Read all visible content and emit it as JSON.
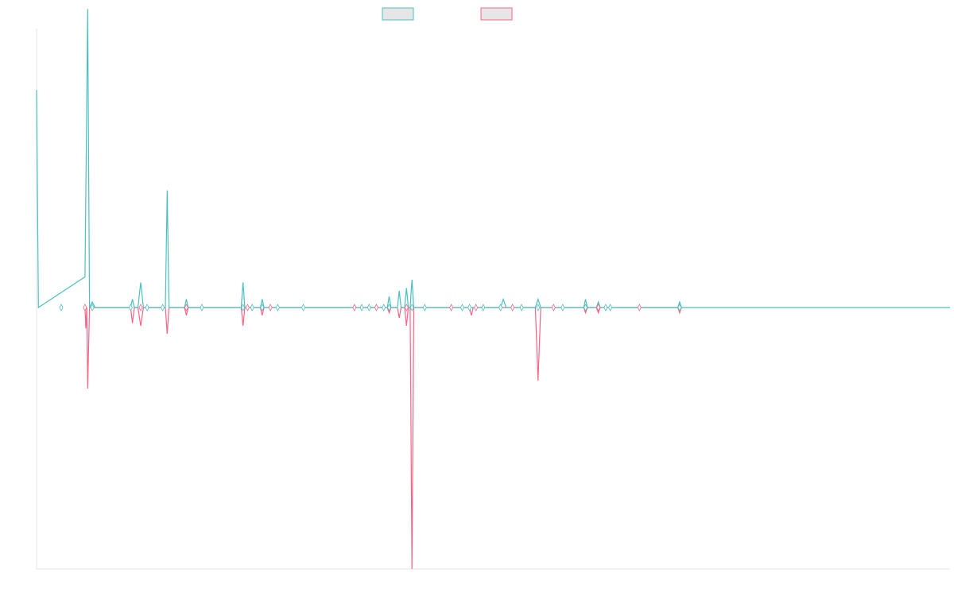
{
  "chart_data": {
    "type": "line",
    "title": "",
    "xlabel": "",
    "ylabel": "",
    "xlim": [
      0,
      100
    ],
    "ylim": [
      -100,
      100
    ],
    "grid": false,
    "legend": {
      "placement": "top-center"
    },
    "series": [
      {
        "color": "#4bc0c0",
        "fill": "#e6e6e6",
        "points": [
          [
            0,
            78
          ],
          [
            0.2,
            0
          ],
          [
            5.3,
            11
          ],
          [
            5.6,
            107
          ],
          [
            5.8,
            0
          ],
          [
            6.1,
            2
          ],
          [
            6.4,
            0
          ],
          [
            10.3,
            0
          ],
          [
            10.5,
            3
          ],
          [
            10.7,
            0
          ],
          [
            11.1,
            0
          ],
          [
            11.4,
            9
          ],
          [
            11.7,
            0
          ],
          [
            14.1,
            0
          ],
          [
            14.3,
            42
          ],
          [
            14.5,
            0
          ],
          [
            16.2,
            0
          ],
          [
            16.4,
            3
          ],
          [
            16.6,
            0
          ],
          [
            22.4,
            0
          ],
          [
            22.6,
            9
          ],
          [
            22.8,
            0
          ],
          [
            24.5,
            0
          ],
          [
            24.7,
            3
          ],
          [
            24.9,
            0
          ],
          [
            38.4,
            0
          ],
          [
            38.6,
            4
          ],
          [
            38.8,
            0
          ],
          [
            39.5,
            0
          ],
          [
            39.7,
            6
          ],
          [
            39.9,
            0
          ],
          [
            40.3,
            0
          ],
          [
            40.5,
            7
          ],
          [
            40.7,
            0
          ],
          [
            40.9,
            0
          ],
          [
            41.1,
            10
          ],
          [
            41.3,
            0
          ],
          [
            50.8,
            0
          ],
          [
            51.1,
            3
          ],
          [
            51.4,
            0
          ],
          [
            54.6,
            0
          ],
          [
            54.9,
            3
          ],
          [
            55.2,
            0
          ],
          [
            59.9,
            0
          ],
          [
            60.1,
            3
          ],
          [
            60.3,
            0
          ],
          [
            61.3,
            0
          ],
          [
            61.5,
            2
          ],
          [
            61.7,
            0
          ],
          [
            70.2,
            0
          ],
          [
            70.4,
            2
          ],
          [
            70.6,
            0
          ],
          [
            100,
            0
          ]
        ]
      },
      {
        "color": "#ff6384",
        "fill": "#e6e6e6",
        "points": [
          [
            5.3,
            0
          ],
          [
            5.4,
            -8
          ],
          [
            5.5,
            0
          ],
          [
            5.6,
            -31
          ],
          [
            5.8,
            0
          ],
          [
            10.3,
            0
          ],
          [
            10.5,
            -6
          ],
          [
            10.7,
            0
          ],
          [
            11.1,
            0
          ],
          [
            11.4,
            -7
          ],
          [
            11.7,
            0
          ],
          [
            14.1,
            0
          ],
          [
            14.3,
            -10
          ],
          [
            14.5,
            0
          ],
          [
            16.2,
            0
          ],
          [
            16.4,
            -3
          ],
          [
            16.6,
            0
          ],
          [
            22.4,
            0
          ],
          [
            22.6,
            -7
          ],
          [
            22.8,
            0
          ],
          [
            24.5,
            0
          ],
          [
            24.7,
            -3
          ],
          [
            24.9,
            0
          ],
          [
            38.4,
            0
          ],
          [
            38.6,
            -2
          ],
          [
            38.8,
            0
          ],
          [
            39.5,
            0
          ],
          [
            39.7,
            -4
          ],
          [
            39.9,
            0
          ],
          [
            40.3,
            0
          ],
          [
            40.5,
            -7
          ],
          [
            40.7,
            0
          ],
          [
            40.9,
            0
          ],
          [
            41.1,
            -100
          ],
          [
            41.3,
            0
          ],
          [
            47.4,
            0
          ],
          [
            47.6,
            -3
          ],
          [
            47.8,
            0
          ],
          [
            54.6,
            0
          ],
          [
            54.9,
            -28
          ],
          [
            55.2,
            0
          ],
          [
            59.9,
            0
          ],
          [
            60.1,
            -2
          ],
          [
            60.3,
            0
          ],
          [
            61.3,
            0
          ],
          [
            61.5,
            -2
          ],
          [
            61.7,
            0
          ],
          [
            70.2,
            0
          ],
          [
            70.4,
            -2
          ],
          [
            70.6,
            0
          ]
        ]
      }
    ],
    "markers_x": [
      2.7,
      5.3,
      6.1,
      10.3,
      11.4,
      12.1,
      13.8,
      16.4,
      18.1,
      22.6,
      23.1,
      23.6,
      24.7,
      25.6,
      26.4,
      29.2,
      34.8,
      35.6,
      36.4,
      37.2,
      38.0,
      38.6,
      40.5,
      41.1,
      42.5,
      45.4,
      46.6,
      47.4,
      48.1,
      48.9,
      50.8,
      52.1,
      53.1,
      54.9,
      56.6,
      57.6,
      60.1,
      61.5,
      62.3,
      62.8,
      66.0,
      70.4
    ]
  }
}
